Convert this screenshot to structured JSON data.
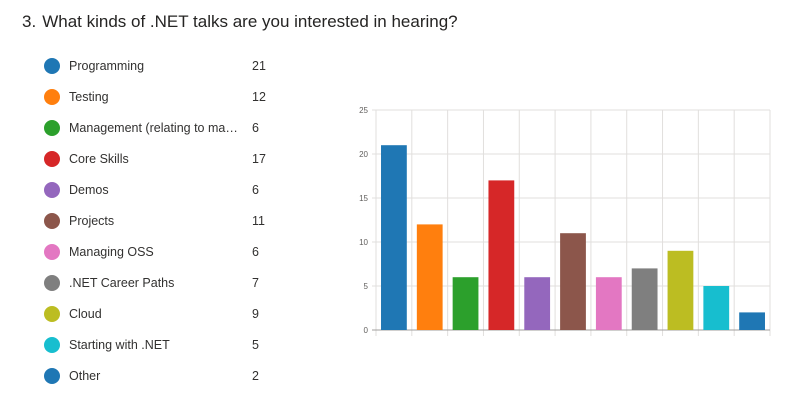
{
  "question": {
    "number": "3.",
    "text": "What kinds of .NET talks are you interested in hearing?"
  },
  "legend": [
    {
      "label": "Programming",
      "count": "21",
      "color": "#1f77b4"
    },
    {
      "label": "Testing",
      "count": "12",
      "color": "#ff7f0e"
    },
    {
      "label": "Management (relating to man...",
      "count": "6",
      "color": "#2ca02c"
    },
    {
      "label": "Core Skills",
      "count": "17",
      "color": "#d62728"
    },
    {
      "label": "Demos",
      "count": "6",
      "color": "#9467bd"
    },
    {
      "label": "Projects",
      "count": "11",
      "color": "#8c564b"
    },
    {
      "label": "Managing OSS",
      "count": "6",
      "color": "#e377c2"
    },
    {
      "label": ".NET Career Paths",
      "count": "7",
      "color": "#7f7f7f"
    },
    {
      "label": "Cloud",
      "count": "9",
      "color": "#bcbd22"
    },
    {
      "label": "Starting with .NET",
      "count": "5",
      "color": "#17becf"
    },
    {
      "label": "Other",
      "count": "2",
      "color": "#1f77b4"
    }
  ],
  "chart_data": {
    "type": "bar",
    "categories": [
      "Programming",
      "Testing",
      "Management (relating to man...",
      "Core Skills",
      "Demos",
      "Projects",
      "Managing OSS",
      ".NET Career Paths",
      "Cloud",
      "Starting with .NET",
      "Other"
    ],
    "values": [
      21,
      12,
      6,
      17,
      6,
      11,
      6,
      7,
      9,
      5,
      2
    ],
    "colors": [
      "#1f77b4",
      "#ff7f0e",
      "#2ca02c",
      "#d62728",
      "#9467bd",
      "#8c564b",
      "#e377c2",
      "#7f7f7f",
      "#bcbd22",
      "#17becf",
      "#1f77b4"
    ],
    "ylim": [
      0,
      25
    ],
    "yticks": [
      0,
      5,
      10,
      15,
      20,
      25
    ],
    "grid": true,
    "legend_placement": "left",
    "title": "",
    "xlabel": "",
    "ylabel": ""
  }
}
